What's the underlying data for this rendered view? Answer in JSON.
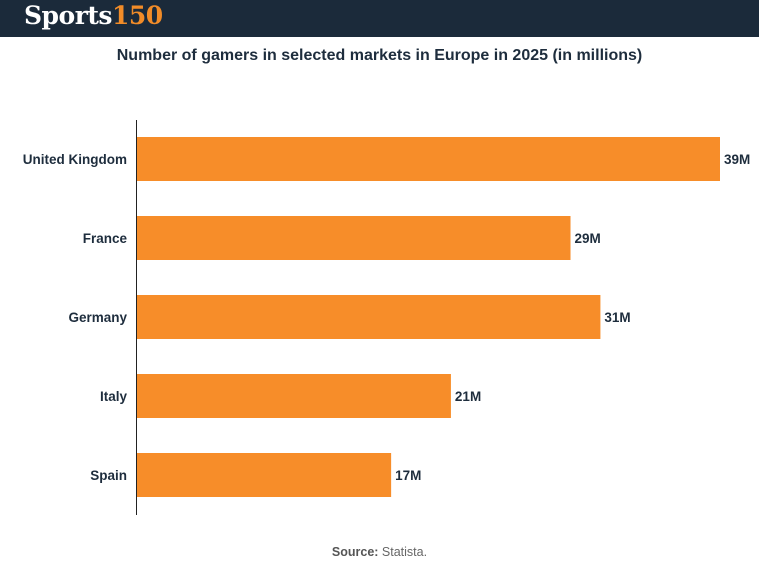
{
  "brand": {
    "word": "Sports",
    "number": "150"
  },
  "colors": {
    "header_bg": "#1b2a3a",
    "bar": "#f78d29",
    "accent": "#f28c28"
  },
  "source": {
    "label": "Source:",
    "text": "Statista."
  },
  "chart_data": {
    "type": "bar",
    "orientation": "horizontal",
    "title": "Number of gamers in selected markets in Europe in 2025 (in millions)",
    "categories": [
      "United Kingdom",
      "France",
      "Germany",
      "Italy",
      "Spain"
    ],
    "values": [
      39,
      29,
      31,
      21,
      17
    ],
    "data_labels": [
      "39M",
      "29M",
      "31M",
      "21M",
      "17M"
    ],
    "xlim": [
      0,
      39
    ],
    "grid": false,
    "legend": "none"
  }
}
